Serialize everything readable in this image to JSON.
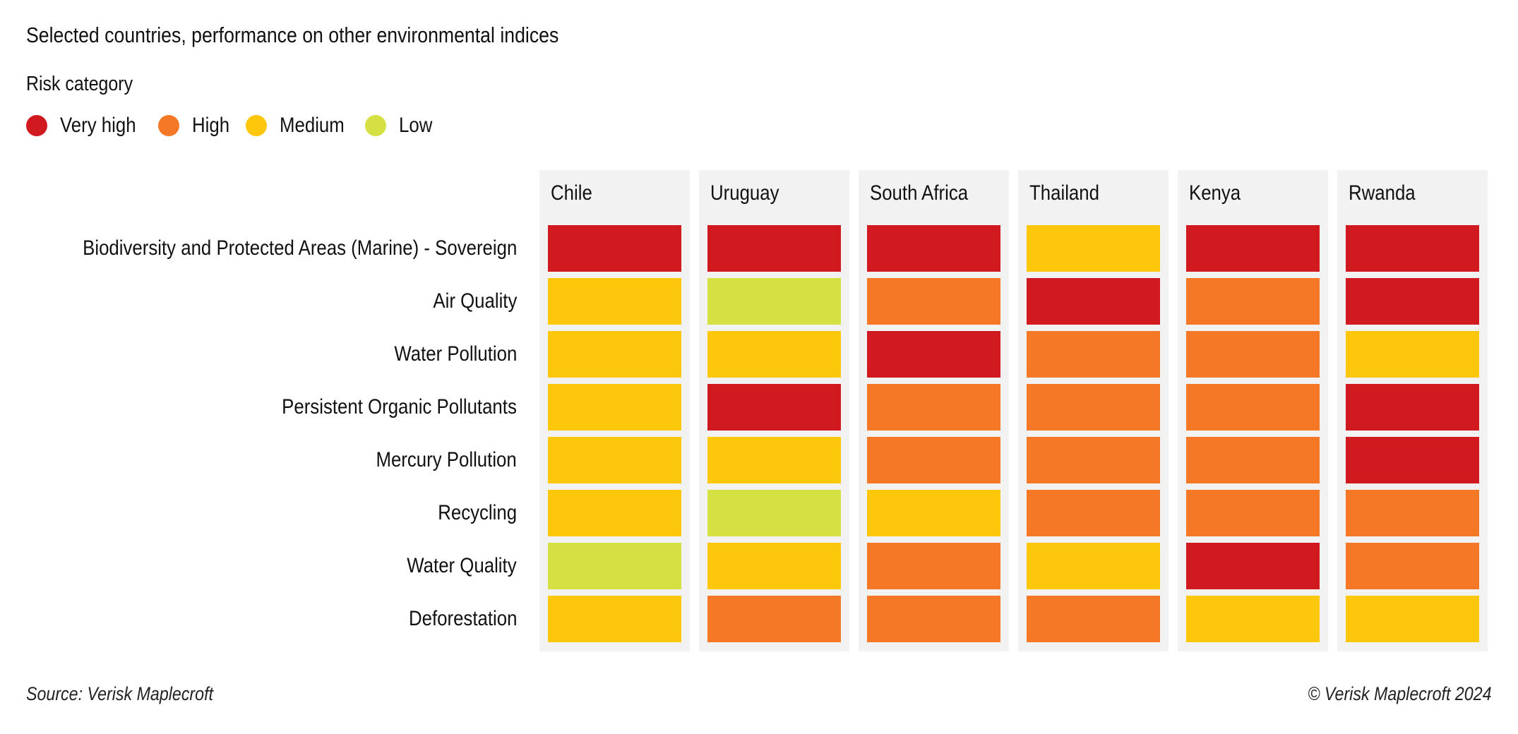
{
  "chart_data": {
    "type": "heatmap",
    "title": "Selected countries, performance on other environmental indices",
    "legend_title": "Risk category",
    "legend_placement": "top-left",
    "categories_legend": [
      {
        "key": "VH",
        "label": "Very high",
        "color": "#d11a20"
      },
      {
        "key": "H",
        "label": "High",
        "color": "#f47825"
      },
      {
        "key": "M",
        "label": "Medium",
        "color": "#fdc70c"
      },
      {
        "key": "L",
        "label": "Low",
        "color": "#d5e042"
      }
    ],
    "columns": [
      "Chile",
      "Uruguay",
      "South Africa",
      "Thailand",
      "Kenya",
      "Rwanda"
    ],
    "rows": [
      "Biodiversity and Protected Areas (Marine) - Sovereign",
      "Air Quality",
      "Water Pollution",
      "Persistent Organic Pollutants",
      "Mercury Pollution",
      "Recycling",
      "Water Quality",
      "Deforestation"
    ],
    "values": [
      [
        "VH",
        "VH",
        "VH",
        "M",
        "VH",
        "VH"
      ],
      [
        "M",
        "L",
        "H",
        "VH",
        "H",
        "VH"
      ],
      [
        "M",
        "M",
        "VH",
        "H",
        "H",
        "M"
      ],
      [
        "M",
        "VH",
        "H",
        "H",
        "H",
        "VH"
      ],
      [
        "M",
        "M",
        "H",
        "H",
        "H",
        "VH"
      ],
      [
        "M",
        "L",
        "M",
        "H",
        "H",
        "H"
      ],
      [
        "L",
        "M",
        "H",
        "M",
        "VH",
        "H"
      ],
      [
        "M",
        "H",
        "H",
        "H",
        "M",
        "M"
      ]
    ],
    "panel_color": "#f2f2f2"
  },
  "footer": {
    "source": "Source: Verisk Maplecroft",
    "copyright": "© Verisk Maplecroft 2024"
  }
}
